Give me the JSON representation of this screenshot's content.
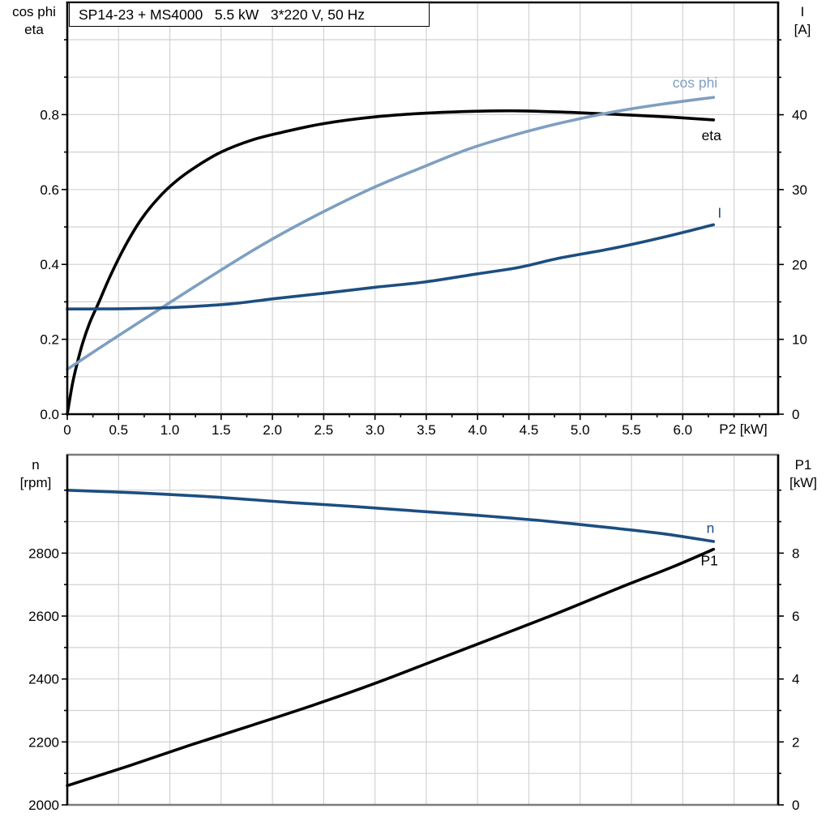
{
  "colors": {
    "curve_black": "#000000",
    "curve_dark_blue": "#1c4e80",
    "curve_light_blue": "#7e9fc1",
    "grid": "#d2d2d2",
    "axis": "#000000",
    "gray_border": "#7c7c7c",
    "background": "#ffffff",
    "text": "#000000"
  },
  "chart_data": [
    {
      "type": "line",
      "title": "SP14-23 + MS4000   5.5 kW   3*220 V, 50 Hz",
      "x_axis": {
        "label": "P2 [kW]",
        "tick_labels": [
          "0",
          "0.5",
          "1.0",
          "1.5",
          "2.0",
          "2.5",
          "3.0",
          "3.5",
          "4.0",
          "4.5",
          "5.0",
          "5.5",
          "6.0"
        ],
        "tick_values": [
          0,
          0.5,
          1.0,
          1.5,
          2.0,
          2.5,
          3.0,
          3.5,
          4.0,
          4.5,
          5.0,
          5.5,
          6.0
        ],
        "range": [
          0,
          6.93
        ],
        "minor_tick_step": 0.25,
        "grid_step": 0.5
      },
      "left_axis": {
        "title_lines": [
          "cos phi",
          "eta"
        ],
        "tick_labels": [
          "0.0",
          "0.2",
          "0.4",
          "0.6",
          "0.8"
        ],
        "tick_values": [
          0,
          0.2,
          0.4,
          0.6,
          0.8
        ],
        "range": [
          0,
          1.1
        ],
        "minor_tick_step": 0.1,
        "grid_step": 0.1
      },
      "right_axis": {
        "title_lines": [
          "I",
          "[A]"
        ],
        "tick_labels": [
          "0",
          "10",
          "20",
          "30",
          "40"
        ],
        "tick_values": [
          0,
          10,
          20,
          30,
          40
        ],
        "range": [
          0,
          55
        ],
        "minor_tick_step": 5
      },
      "legend_position": "end-of-curve",
      "grid": true,
      "series": [
        {
          "name": "eta",
          "axis": "left",
          "color": "curve_black",
          "label": {
            "text": "eta",
            "x": 6.28,
            "v": 0.745
          },
          "points": [
            [
              0,
              0
            ],
            [
              0.05,
              0.08
            ],
            [
              0.1,
              0.14
            ],
            [
              0.15,
              0.19
            ],
            [
              0.22,
              0.245
            ],
            [
              0.31,
              0.3
            ],
            [
              0.42,
              0.37
            ],
            [
              0.57,
              0.452
            ],
            [
              0.72,
              0.52
            ],
            [
              0.88,
              0.575
            ],
            [
              1.05,
              0.62
            ],
            [
              1.25,
              0.66
            ],
            [
              1.5,
              0.7
            ],
            [
              1.8,
              0.732
            ],
            [
              2.1,
              0.753
            ],
            [
              2.5,
              0.776
            ],
            [
              3.0,
              0.794
            ],
            [
              3.5,
              0.804
            ],
            [
              4.0,
              0.809
            ],
            [
              4.4,
              0.81
            ],
            [
              4.9,
              0.806
            ],
            [
              5.4,
              0.8
            ],
            [
              5.9,
              0.793
            ],
            [
              6.3,
              0.786
            ]
          ]
        },
        {
          "name": "cos phi",
          "axis": "left",
          "color": "curve_light_blue",
          "label": {
            "text": "cos phi",
            "x": 6.12,
            "v": 0.885
          },
          "points": [
            [
              0,
              0.12
            ],
            [
              0.4,
              0.192
            ],
            [
              0.92,
              0.284
            ],
            [
              1.4,
              0.368
            ],
            [
              1.9,
              0.452
            ],
            [
              2.4,
              0.527
            ],
            [
              2.96,
              0.602
            ],
            [
              3.45,
              0.658
            ],
            [
              3.9,
              0.707
            ],
            [
              4.35,
              0.745
            ],
            [
              4.8,
              0.777
            ],
            [
              5.3,
              0.806
            ],
            [
              5.8,
              0.828
            ],
            [
              6.3,
              0.846
            ]
          ]
        },
        {
          "name": "I",
          "axis": "right",
          "color": "curve_dark_blue",
          "label": {
            "text": "I",
            "x": 6.36,
            "v": 26.9
          },
          "points": [
            [
              0,
              14.05
            ],
            [
              0.6,
              14.1
            ],
            [
              1.1,
              14.3
            ],
            [
              1.6,
              14.75
            ],
            [
              2.03,
              15.45
            ],
            [
              2.5,
              16.15
            ],
            [
              3.0,
              16.95
            ],
            [
              3.48,
              17.65
            ],
            [
              4.0,
              18.75
            ],
            [
              4.4,
              19.6
            ],
            [
              4.8,
              20.85
            ],
            [
              5.3,
              22.1
            ],
            [
              5.8,
              23.6
            ],
            [
              6.3,
              25.3
            ]
          ]
        }
      ]
    },
    {
      "type": "line",
      "title": "",
      "x_axis": {
        "label": "",
        "tick_labels": [],
        "tick_values": [],
        "range": [
          0,
          6.93
        ],
        "minor_tick_step": null,
        "grid_step": 0.5
      },
      "left_axis": {
        "title_lines": [
          "n",
          "[rpm]"
        ],
        "tick_labels": [
          "2000",
          "2200",
          "2400",
          "2600",
          "2800"
        ],
        "tick_values": [
          2000,
          2200,
          2400,
          2600,
          2800
        ],
        "range": [
          2000,
          3113
        ],
        "minor_tick_step": 100,
        "grid_step": 100
      },
      "right_axis": {
        "title_lines": [
          "P1",
          "[kW]"
        ],
        "tick_labels": [
          "0",
          "2",
          "4",
          "6",
          "8"
        ],
        "tick_values": [
          0,
          2,
          4,
          6,
          8
        ],
        "range": [
          0,
          11.1
        ],
        "minor_tick_step": 1
      },
      "legend_position": "end-of-curve",
      "grid": true,
      "series": [
        {
          "name": "n",
          "axis": "left",
          "color": "curve_dark_blue",
          "label": {
            "text": "n",
            "x": 6.27,
            "v": 2879
          },
          "points": [
            [
              0,
              3000
            ],
            [
              0.7,
              2991
            ],
            [
              1.4,
              2979
            ],
            [
              2.17,
              2961
            ],
            [
              2.8,
              2948
            ],
            [
              3.4,
              2934
            ],
            [
              4.0,
              2920
            ],
            [
              4.6,
              2904
            ],
            [
              5.2,
              2884
            ],
            [
              5.8,
              2862
            ],
            [
              6.3,
              2837
            ]
          ]
        },
        {
          "name": "P1",
          "axis": "right",
          "color": "curve_black",
          "label": {
            "text": "P1",
            "x": 6.26,
            "v": 7.77
          },
          "points": [
            [
              0,
              0.61
            ],
            [
              0.6,
              1.24
            ],
            [
              1.2,
              1.9
            ],
            [
              1.8,
              2.53
            ],
            [
              2.4,
              3.17
            ],
            [
              3.0,
              3.86
            ],
            [
              3.6,
              4.61
            ],
            [
              4.2,
              5.36
            ],
            [
              4.8,
              6.12
            ],
            [
              5.4,
              6.92
            ],
            [
              5.9,
              7.56
            ],
            [
              6.3,
              8.12
            ]
          ]
        }
      ]
    }
  ]
}
